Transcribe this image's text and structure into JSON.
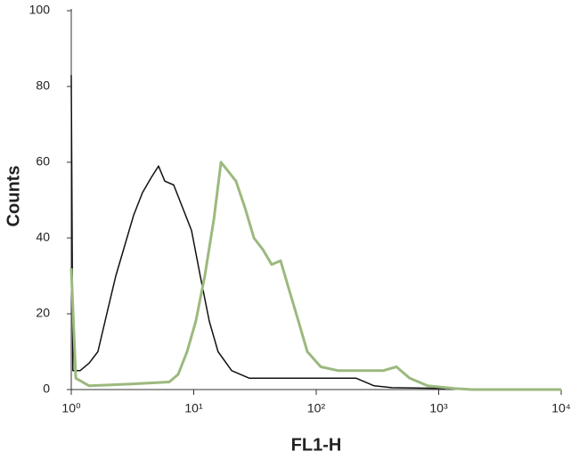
{
  "chart_data": {
    "type": "line",
    "xlabel": "FL1-H",
    "ylabel": "Counts",
    "xscale": "log",
    "xlim": [
      1,
      10000
    ],
    "xticks": [
      {
        "value": 1,
        "label": "10⁰"
      },
      {
        "value": 10,
        "label": "10¹"
      },
      {
        "value": 100,
        "label": "10²"
      },
      {
        "value": 1000,
        "label": "10³"
      },
      {
        "value": 10000,
        "label": "10⁴"
      }
    ],
    "ylim": [
      0,
      100
    ],
    "yticks": [
      0,
      20,
      40,
      60,
      80,
      100
    ],
    "series": [
      {
        "color": "#111111",
        "x": [
          1,
          1.03,
          1.18,
          1.4,
          1.65,
          1.95,
          2.31,
          2.73,
          3.23,
          3.82,
          4.51,
          5.16,
          5.8,
          6.86,
          8.11,
          9.59,
          11.3,
          13.4,
          15.8,
          20.4,
          28.5,
          39.8,
          92,
          212,
          297,
          415,
          1135
        ],
        "values": [
          83,
          5,
          5,
          7,
          10,
          20,
          30,
          38,
          46,
          52,
          56,
          59,
          55,
          54,
          48,
          42,
          30,
          18,
          10,
          5,
          3,
          3,
          3,
          3,
          1,
          0.5,
          0.3
        ]
      },
      {
        "color": "#9cb97e",
        "x": [
          1,
          1.09,
          1.4,
          3.23,
          6.31,
          7.46,
          8.82,
          10.4,
          12.3,
          14.6,
          16.7,
          18.7,
          22.1,
          26.2,
          31,
          36.6,
          43.3,
          51.2,
          60.5,
          71.6,
          84.6,
          109,
          152,
          212,
          351,
          452,
          580,
          811,
          1340,
          1875,
          10000
        ],
        "values": [
          32,
          3,
          1,
          1.5,
          2,
          4,
          10,
          18,
          30,
          45,
          60,
          58,
          55,
          48,
          40,
          37,
          33,
          34,
          26,
          18,
          10,
          6,
          5,
          5,
          5,
          6,
          3,
          1,
          0.3,
          0,
          0
        ]
      }
    ]
  }
}
